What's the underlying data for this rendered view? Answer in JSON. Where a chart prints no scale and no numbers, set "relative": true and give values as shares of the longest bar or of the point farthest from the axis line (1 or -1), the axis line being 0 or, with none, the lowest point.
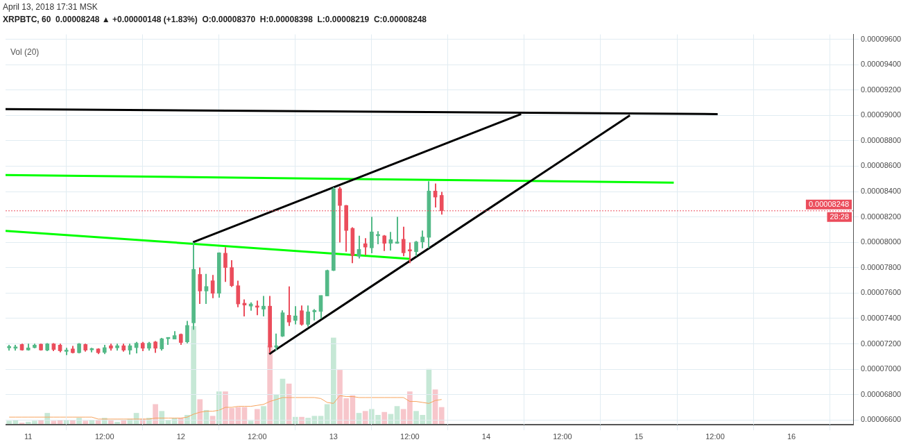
{
  "chart_data": [
    {
      "type": "candlestick",
      "title": "XRPBTC, 60  0.00008248 ▲ +0.00000148 (+1.83%)  O:0.00008370  H:0.00008398  L:0.00008219  C:0.00008248",
      "subtitle": "April 13, 2018 17:31 MSK",
      "x": [
        "2018-04-10T21:00",
        "2018-04-10T22:00",
        "2018-04-10T23:00",
        "2018-04-11T00:00",
        "2018-04-11T01:00",
        "2018-04-11T02:00",
        "2018-04-11T03:00",
        "2018-04-11T04:00",
        "2018-04-11T05:00",
        "2018-04-11T06:00",
        "2018-04-11T07:00",
        "2018-04-11T08:00",
        "2018-04-11T09:00",
        "2018-04-11T10:00",
        "2018-04-11T11:00",
        "2018-04-11T12:00",
        "2018-04-11T13:00",
        "2018-04-11T14:00",
        "2018-04-11T15:00",
        "2018-04-11T16:00",
        "2018-04-11T17:00",
        "2018-04-11T18:00",
        "2018-04-11T19:00",
        "2018-04-11T20:00",
        "2018-04-11T21:00",
        "2018-04-11T22:00",
        "2018-04-11T23:00",
        "2018-04-12T00:00",
        "2018-04-12T01:00",
        "2018-04-12T02:00",
        "2018-04-12T03:00",
        "2018-04-12T04:00",
        "2018-04-12T05:00",
        "2018-04-12T06:00",
        "2018-04-12T07:00",
        "2018-04-12T08:00",
        "2018-04-12T09:00",
        "2018-04-12T10:00",
        "2018-04-12T11:00",
        "2018-04-12T12:00",
        "2018-04-12T13:00",
        "2018-04-12T14:00",
        "2018-04-12T15:00",
        "2018-04-12T16:00",
        "2018-04-12T17:00",
        "2018-04-12T18:00",
        "2018-04-12T19:00",
        "2018-04-12T20:00",
        "2018-04-12T21:00",
        "2018-04-12T22:00",
        "2018-04-12T23:00",
        "2018-04-13T00:00",
        "2018-04-13T01:00",
        "2018-04-13T02:00",
        "2018-04-13T03:00",
        "2018-04-13T04:00",
        "2018-04-13T05:00",
        "2018-04-13T06:00",
        "2018-04-13T07:00",
        "2018-04-13T08:00",
        "2018-04-13T09:00",
        "2018-04-13T10:00",
        "2018-04-13T11:00",
        "2018-04-13T12:00",
        "2018-04-13T13:00",
        "2018-04-13T14:00",
        "2018-04-13T15:00",
        "2018-04-13T16:00",
        "2018-04-13T17:00"
      ],
      "ohlc": [
        [
          7.168e-05,
          7.192e-05,
          7.147e-05,
          7.17e-05
        ],
        [
          7.165e-05,
          7.192e-05,
          7.147e-05,
          7.172e-05
        ],
        [
          7.195e-05,
          7.201e-05,
          7.147e-05,
          7.151e-05
        ],
        [
          7.151e-05,
          7.201e-05,
          7.147e-05,
          7.168e-05
        ],
        [
          7.17e-05,
          7.201e-05,
          7.165e-05,
          7.19e-05
        ],
        [
          7.197e-05,
          7.201e-05,
          7.147e-05,
          7.151e-05
        ],
        [
          7.15e-05,
          7.206e-05,
          7.143e-05,
          7.2e-05
        ],
        [
          7.2e-05,
          7.206e-05,
          7.143e-05,
          7.155e-05
        ],
        [
          7.19e-05,
          7.201e-05,
          7.133e-05,
          7.145e-05
        ],
        [
          7.14e-05,
          7.169e-05,
          7.111e-05,
          7.15e-05
        ],
        [
          7.16e-05,
          7.183e-05,
          7.125e-05,
          7.13e-05
        ],
        [
          7.13e-05,
          7.206e-05,
          7.125e-05,
          7.2e-05
        ],
        [
          7.195e-05,
          7.201e-05,
          7.138e-05,
          7.15e-05
        ],
        [
          7.152e-05,
          7.169e-05,
          7.133e-05,
          7.155e-05
        ],
        [
          7.16e-05,
          7.165e-05,
          7.12e-05,
          7.13e-05
        ],
        [
          7.132e-05,
          7.192e-05,
          7.12e-05,
          7.17e-05
        ],
        [
          7.185e-05,
          7.201e-05,
          7.147e-05,
          7.165e-05
        ],
        [
          7.168e-05,
          7.201e-05,
          7.147e-05,
          7.185e-05
        ],
        [
          7.185e-05,
          7.201e-05,
          7.138e-05,
          7.15e-05
        ],
        [
          7.15e-05,
          7.201e-05,
          7.115e-05,
          7.185e-05
        ],
        [
          7.17e-05,
          7.215e-05,
          7.125e-05,
          7.205e-05
        ],
        [
          7.205e-05,
          7.215e-05,
          7.143e-05,
          7.165e-05
        ],
        [
          7.165e-05,
          7.215e-05,
          7.147e-05,
          7.205e-05
        ],
        [
          7.215e-05,
          7.222e-05,
          7.129e-05,
          7.165e-05
        ],
        [
          7.16e-05,
          7.246e-05,
          7.147e-05,
          7.24e-05
        ],
        [
          7.24e-05,
          7.246e-05,
          7.192e-05,
          7.244e-05
        ],
        [
          7.237e-05,
          7.3e-05,
          7.237e-05,
          7.265e-05
        ],
        [
          7.275e-05,
          7.281e-05,
          7.192e-05,
          7.21e-05
        ],
        [
          7.215e-05,
          7.38e-05,
          7.204e-05,
          7.345e-05
        ],
        [
          7.365e-05,
          7.998e-05,
          7.311e-05,
          7.787e-05
        ],
        [
          7.747e-05,
          7.801e-05,
          7.514e-05,
          7.616e-05
        ],
        [
          7.616e-05,
          7.751e-05,
          7.514e-05,
          7.652e-05
        ],
        [
          7.697e-05,
          7.742e-05,
          7.559e-05,
          7.598e-05
        ],
        [
          7.598e-05,
          7.921e-05,
          7.563e-05,
          7.917e-05
        ],
        [
          7.914e-05,
          7.962e-05,
          7.688e-05,
          7.801e-05
        ],
        [
          7.801e-05,
          7.859e-05,
          7.649e-05,
          7.658e-05
        ],
        [
          7.658e-05,
          7.697e-05,
          7.488e-05,
          7.514e-05
        ],
        [
          7.52e-05,
          7.55e-05,
          7.416e-05,
          7.505e-05
        ],
        [
          7.497e-05,
          7.527e-05,
          7.461e-05,
          7.514e-05
        ],
        [
          7.497e-05,
          7.54e-05,
          7.425e-05,
          7.488e-05
        ],
        [
          7.473e-05,
          7.577e-05,
          7.416e-05,
          7.497e-05
        ],
        [
          7.497e-05,
          7.577e-05,
          7.129e-05,
          7.174e-05
        ],
        [
          7.174e-05,
          7.281e-05,
          7.147e-05,
          7.183e-05
        ],
        [
          7.26e-05,
          7.464e-05,
          7.255e-05,
          7.445e-05
        ],
        [
          7.425e-05,
          7.652e-05,
          7.341e-05,
          7.371e-05
        ],
        [
          7.384e-05,
          7.497e-05,
          7.353e-05,
          7.42e-05
        ],
        [
          7.461e-05,
          7.502e-05,
          7.344e-05,
          7.353e-05
        ],
        [
          7.353e-05,
          7.502e-05,
          7.335e-05,
          7.452e-05
        ],
        [
          7.452e-05,
          7.473e-05,
          7.384e-05,
          7.455e-05
        ],
        [
          7.455e-05,
          7.581e-05,
          7.398e-05,
          7.581e-05
        ],
        [
          7.577e-05,
          7.783e-05,
          7.577e-05,
          7.778e-05
        ],
        [
          7.778e-05,
          8.433e-05,
          7.774e-05,
          8.422e-05
        ],
        [
          8.422e-05,
          8.437e-05,
          7.998e-05,
          8.29e-05
        ],
        [
          8.29e-05,
          8.293e-05,
          7.926e-05,
          8.093e-05
        ],
        [
          8.11e-05,
          8.118e-05,
          7.836e-05,
          7.895e-05
        ],
        [
          7.89e-05,
          8.051e-05,
          7.872e-05,
          7.944e-05
        ],
        [
          7.989e-05,
          8.033e-05,
          7.899e-05,
          7.962e-05
        ],
        [
          7.956e-05,
          8.2e-05,
          7.913e-05,
          8.082e-05
        ],
        [
          8.051e-05,
          8.087e-05,
          7.985e-05,
          8.057e-05
        ],
        [
          8.051e-05,
          8.057e-05,
          7.931e-05,
          7.992e-05
        ],
        [
          7.992e-05,
          8.082e-05,
          7.935e-05,
          8.021e-05
        ],
        [
          7.992e-05,
          8.2e-05,
          7.989e-05,
          7.998e-05
        ],
        [
          8.024e-05,
          8.123e-05,
          7.89e-05,
          7.917e-05
        ],
        [
          7.935e-05,
          7.998e-05,
          7.836e-05,
          7.931e-05
        ],
        [
          7.926e-05,
          8.01e-05,
          7.89e-05,
          8.003e-05
        ],
        [
          8.003e-05,
          8.093e-05,
          7.953e-05,
          8.042e-05
        ],
        [
          8.039e-05,
          8.481e-05,
          7.953e-05,
          8.404e-05
        ],
        [
          8.404e-05,
          8.463e-05,
          8.275e-05,
          8.356e-05
        ],
        [
          8.37e-05,
          8.398e-05,
          8.219e-05,
          8.248e-05
        ]
      ],
      "colors": [
        "#53b987",
        "#53b987",
        "#eb4d5c",
        "#53b987",
        "#53b987",
        "#eb4d5c",
        "#53b987",
        "#eb4d5c",
        "#eb4d5c",
        "#53b987",
        "#eb4d5c",
        "#53b987",
        "#eb4d5c",
        "#53b987",
        "#eb4d5c",
        "#53b987",
        "#eb4d5c",
        "#53b987",
        "#eb4d5c",
        "#53b987",
        "#53b987",
        "#eb4d5c",
        "#53b987",
        "#eb4d5c",
        "#53b987",
        "#53b987",
        "#53b987",
        "#eb4d5c",
        "#53b987",
        "#53b987",
        "#eb4d5c",
        "#53b987",
        "#eb4d5c",
        "#53b987",
        "#eb4d5c",
        "#eb4d5c",
        "#eb4d5c",
        "#eb4d5c",
        "#53b987",
        "#eb4d5c",
        "#53b987",
        "#eb4d5c",
        "#53b987",
        "#53b987",
        "#eb4d5c",
        "#53b987",
        "#eb4d5c",
        "#53b987",
        "#53b987",
        "#53b987",
        "#53b987",
        "#53b987",
        "#eb4d5c",
        "#eb4d5c",
        "#eb4d5c",
        "#53b987",
        "#eb4d5c",
        "#53b987",
        "#53b987",
        "#eb4d5c",
        "#53b987",
        "#53b987",
        "#eb4d5c",
        "#eb4d5c",
        "#53b987",
        "#53b987",
        "#53b987",
        "#eb4d5c",
        "#eb4d5c"
      ],
      "series": [
        {
          "type": "line",
          "color": "#000000",
          "x": [
            "2018-04-10T20:26",
            "2018-04-15T12:24"
          ],
          "values": [
            9.05e-05,
            9.01e-05
          ]
        },
        {
          "type": "line",
          "color": "#000000",
          "x": [
            "2018-04-12T01:54",
            "2018-04-14T05:30"
          ],
          "values": [
            8e-05,
            9.01e-05
          ]
        },
        {
          "type": "line",
          "color": "#000000",
          "x": [
            "2018-04-12T13:54",
            "2018-04-14T22:36"
          ],
          "values": [
            7.12e-05,
            9e-05
          ]
        },
        {
          "type": "line",
          "color": "#00ff00",
          "x": [
            "2018-04-10T20:26",
            "2018-04-15T05:30"
          ],
          "values": [
            8.53e-05,
            8.47e-05
          ]
        },
        {
          "type": "line",
          "color": "#00ff00",
          "x": [
            "2018-04-10T20:26",
            "2018-04-13T11:54"
          ],
          "values": [
            8.09e-05,
            7.87e-05
          ]
        }
      ],
      "xlim": [
        "2018-04-10T20:26",
        "2018-04-16T09:42"
      ],
      "xticks": [
        {
          "value": "2018-04-11",
          "label": "11"
        },
        {
          "value": "2018-04-11T12:00",
          "label": "12:00"
        },
        {
          "value": "2018-04-12",
          "label": "12"
        },
        {
          "value": "2018-04-12T12:00",
          "label": "12:00"
        },
        {
          "value": "2018-04-13",
          "label": "13"
        },
        {
          "value": "2018-04-13T12:00",
          "label": "12:00"
        },
        {
          "value": "2018-04-14",
          "label": "14"
        },
        {
          "value": "2018-04-14T12:00",
          "label": "12:00"
        },
        {
          "value": "2018-04-15",
          "label": "15"
        },
        {
          "value": "2018-04-15T12:00",
          "label": "12:00"
        },
        {
          "value": "2018-04-16",
          "label": "16"
        }
      ],
      "ylim": [
        6.563e-05,
        9.638e-05
      ],
      "yticks": [
        {
          "value": 6.6e-05,
          "label": "0.00006600"
        },
        {
          "value": 6.8e-05,
          "label": "0.00006800"
        },
        {
          "value": 7e-05,
          "label": "0.00007000"
        },
        {
          "value": 7.2e-05,
          "label": "0.00007200"
        },
        {
          "value": 7.4e-05,
          "label": "0.00007400"
        },
        {
          "value": 7.6e-05,
          "label": "0.00007600"
        },
        {
          "value": 7.8e-05,
          "label": "0.00007800"
        },
        {
          "value": 8e-05,
          "label": "0.00008000"
        },
        {
          "value": 8.2e-05,
          "label": "0.00008200"
        },
        {
          "value": 8.4e-05,
          "label": "0.00008400"
        },
        {
          "value": 8.6e-05,
          "label": "0.00008600"
        },
        {
          "value": 8.8e-05,
          "label": "0.00008800"
        },
        {
          "value": 9e-05,
          "label": "0.00009000"
        },
        {
          "value": 9.2e-05,
          "label": "0.00009200"
        },
        {
          "value": 9.4e-05,
          "label": "0.00009400"
        },
        {
          "value": 9.6e-05,
          "label": "0.00009600"
        }
      ],
      "ref_lines": [
        {
          "axis": "y",
          "value": 8.248e-05,
          "label": "0.00008248",
          "color": "#eb4d5c",
          "line_style": "dotted"
        }
      ],
      "annotations": [
        "28:28"
      ],
      "grid": true
    },
    {
      "type": "bar",
      "relative": true,
      "title": "Vol (20)",
      "tick_labels": false,
      "xlim": [
        "2018-04-10T20:26",
        "2018-04-16T09:42"
      ],
      "x": [
        "2018-04-10T21:00",
        "2018-04-10T22:00",
        "2018-04-10T23:00",
        "2018-04-11T00:00",
        "2018-04-11T01:00",
        "2018-04-11T02:00",
        "2018-04-11T03:00",
        "2018-04-11T04:00",
        "2018-04-11T05:00",
        "2018-04-11T06:00",
        "2018-04-11T07:00",
        "2018-04-11T08:00",
        "2018-04-11T09:00",
        "2018-04-11T10:00",
        "2018-04-11T11:00",
        "2018-04-11T12:00",
        "2018-04-11T13:00",
        "2018-04-11T14:00",
        "2018-04-11T15:00",
        "2018-04-11T16:00",
        "2018-04-11T17:00",
        "2018-04-11T18:00",
        "2018-04-11T19:00",
        "2018-04-11T20:00",
        "2018-04-11T21:00",
        "2018-04-11T22:00",
        "2018-04-11T23:00",
        "2018-04-12T00:00",
        "2018-04-12T01:00",
        "2018-04-12T02:00",
        "2018-04-12T03:00",
        "2018-04-12T04:00",
        "2018-04-12T05:00",
        "2018-04-12T06:00",
        "2018-04-12T07:00",
        "2018-04-12T08:00",
        "2018-04-12T09:00",
        "2018-04-12T10:00",
        "2018-04-12T11:00",
        "2018-04-12T12:00",
        "2018-04-12T13:00",
        "2018-04-12T14:00",
        "2018-04-12T15:00",
        "2018-04-12T16:00",
        "2018-04-12T17:00",
        "2018-04-12T18:00",
        "2018-04-12T19:00",
        "2018-04-12T20:00",
        "2018-04-12T21:00",
        "2018-04-12T22:00",
        "2018-04-12T23:00",
        "2018-04-13T00:00",
        "2018-04-13T01:00",
        "2018-04-13T02:00",
        "2018-04-13T03:00",
        "2018-04-13T04:00",
        "2018-04-13T05:00",
        "2018-04-13T06:00",
        "2018-04-13T07:00",
        "2018-04-13T08:00",
        "2018-04-13T09:00",
        "2018-04-13T10:00",
        "2018-04-13T11:00",
        "2018-04-13T12:00",
        "2018-04-13T13:00",
        "2018-04-13T14:00",
        "2018-04-13T15:00",
        "2018-04-13T16:00",
        "2018-04-13T17:00"
      ],
      "series": [
        {
          "type": "bar",
          "values": [
            0.03,
            0.04,
            0.01,
            0.02,
            0.03,
            0.04,
            0.11,
            0.03,
            0.04,
            0.04,
            0.04,
            0.06,
            0.03,
            0.04,
            0.04,
            0.06,
            0.04,
            0.02,
            0.04,
            0.05,
            0.11,
            0.05,
            0.06,
            0.2,
            0.13,
            0.04,
            0.06,
            0.06,
            0.09,
            1,
            0.25,
            0.14,
            0.08,
            0.33,
            0.33,
            0.16,
            0.17,
            0.17,
            0.03,
            0.15,
            0.18,
            0.8,
            0.3,
            0.46,
            0.41,
            0.07,
            0.07,
            0.06,
            0.08,
            0.08,
            0.2,
            0.88,
            0.55,
            0.26,
            0.29,
            0.11,
            0.13,
            0.15,
            0.09,
            0.12,
            0.1,
            0.18,
            0.15,
            0.33,
            0.13,
            0.09,
            0.56,
            0.35,
            0.17
          ],
          "colors": [
            "#c6e8d6",
            "#c6e8d6",
            "#f7c6cb",
            "#c6e8d6",
            "#c6e8d6",
            "#f7c6cb",
            "#c6e8d6",
            "#f7c6cb",
            "#f7c6cb",
            "#c6e8d6",
            "#f7c6cb",
            "#c6e8d6",
            "#f7c6cb",
            "#c6e8d6",
            "#f7c6cb",
            "#c6e8d6",
            "#f7c6cb",
            "#c6e8d6",
            "#f7c6cb",
            "#c6e8d6",
            "#c6e8d6",
            "#f7c6cb",
            "#c6e8d6",
            "#f7c6cb",
            "#c6e8d6",
            "#c6e8d6",
            "#c6e8d6",
            "#f7c6cb",
            "#c6e8d6",
            "#c6e8d6",
            "#f7c6cb",
            "#c6e8d6",
            "#f7c6cb",
            "#c6e8d6",
            "#f7c6cb",
            "#f7c6cb",
            "#f7c6cb",
            "#f7c6cb",
            "#c6e8d6",
            "#f7c6cb",
            "#c6e8d6",
            "#f7c6cb",
            "#c6e8d6",
            "#c6e8d6",
            "#f7c6cb",
            "#c6e8d6",
            "#f7c6cb",
            "#c6e8d6",
            "#c6e8d6",
            "#c6e8d6",
            "#c6e8d6",
            "#c6e8d6",
            "#f7c6cb",
            "#f7c6cb",
            "#f7c6cb",
            "#c6e8d6",
            "#f7c6cb",
            "#c6e8d6",
            "#c6e8d6",
            "#f7c6cb",
            "#c6e8d6",
            "#c6e8d6",
            "#f7c6cb",
            "#f7c6cb",
            "#c6e8d6",
            "#c6e8d6",
            "#c6e8d6",
            "#f7c6cb",
            "#f7c6cb"
          ]
        },
        {
          "type": "line",
          "color": "#f7a35c",
          "values": [
            0.07,
            0.07,
            0.07,
            0.07,
            0.07,
            0.07,
            0.07,
            0.07,
            0.07,
            0.07,
            0.07,
            0.07,
            0.07,
            0.07,
            0.05,
            0.05,
            0.05,
            0.05,
            0.05,
            0.05,
            0.05,
            0.05,
            0.05,
            0.06,
            0.06,
            0.06,
            0.06,
            0.06,
            0.07,
            0.1,
            0.12,
            0.13,
            0.13,
            0.14,
            0.17,
            0.17,
            0.18,
            0.18,
            0.18,
            0.19,
            0.2,
            0.23,
            0.25,
            0.27,
            0.27,
            0.27,
            0.27,
            0.27,
            0.27,
            0.26,
            0.22,
            0.21,
            0.29,
            0.28,
            0.28,
            0.27,
            0.27,
            0.27,
            0.27,
            0.27,
            0.27,
            0.27,
            0.27,
            0.23,
            0.23,
            0.22,
            0.21,
            0.24,
            0.25
          ]
        }
      ]
    }
  ]
}
